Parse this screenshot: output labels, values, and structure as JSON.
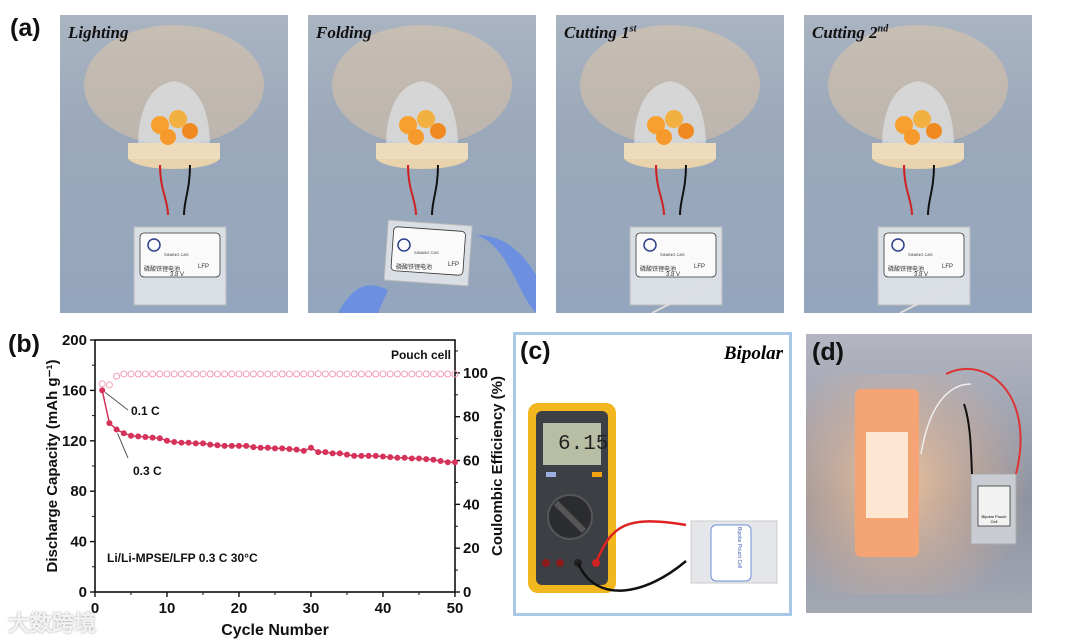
{
  "panels": {
    "a": {
      "label": "(a)",
      "photos": [
        {
          "caption": "Lighting",
          "sup": ""
        },
        {
          "caption": "Folding",
          "sup": ""
        },
        {
          "caption": "Cutting 1",
          "sup": "st"
        },
        {
          "caption": "Cutting 2",
          "sup": "nd"
        }
      ],
      "pouch_voltage": "3.8 V",
      "pouch_chem": "LFP",
      "pouch_name": "磷酸铁锂电池",
      "pouch_org": "SINANO CAS"
    },
    "b": {
      "label": "(b)"
    },
    "c": {
      "label": "(c)",
      "title": "Bipolar",
      "meter_reading": "6.15",
      "pouch_text": "Bipolar Pouch Cell"
    },
    "d": {
      "label": "(d)",
      "pouch_text": "Bipolar Pouch Cell"
    }
  },
  "watermark": "大数跨境",
  "chart_data": {
    "type": "scatter",
    "xlabel": "Cycle Number",
    "ylabel": "Discharge Capacity (mAh g⁻¹)",
    "y2label": "Coulombic Efficiency (%)",
    "xlim": [
      0,
      50
    ],
    "ylim": [
      0,
      200
    ],
    "y2lim": [
      0,
      115
    ],
    "xticks": [
      0,
      10,
      20,
      30,
      40,
      50
    ],
    "yticks": [
      0,
      40,
      80,
      120,
      160,
      200
    ],
    "y2ticks": [
      0,
      20,
      40,
      60,
      80,
      100
    ],
    "legend": "Pouch cell",
    "annotation_condition": "Li/Li-MPSE/LFP  0.3 C  30°C",
    "annotations": [
      "0.1 C",
      "0.3 C"
    ],
    "colors": {
      "capacity": "#d6335a",
      "efficiency": "#f0a0b4"
    },
    "series": [
      {
        "axis": "left",
        "x": [
          1,
          2,
          3,
          4,
          5,
          6,
          7,
          8,
          9,
          10,
          11,
          12,
          13,
          14,
          15,
          16,
          17,
          18,
          19,
          20,
          21,
          22,
          23,
          24,
          25,
          26,
          27,
          28,
          29,
          30,
          31,
          32,
          33,
          34,
          35,
          36,
          37,
          38,
          39,
          40,
          41,
          42,
          43,
          44,
          45,
          46,
          47,
          48,
          49,
          50
        ],
        "values": [
          160,
          134,
          129,
          126,
          124,
          123.5,
          123,
          122.5,
          122,
          120,
          119,
          118.5,
          118.5,
          118,
          118,
          117,
          116.5,
          116,
          116,
          116,
          116,
          115,
          114.5,
          114.5,
          114,
          114,
          113.5,
          113,
          112,
          114.5,
          111,
          111,
          110,
          110,
          109,
          108,
          108,
          108,
          108,
          107.5,
          107,
          106.5,
          106.5,
          106,
          106,
          105.5,
          105,
          104,
          103,
          103
        ]
      },
      {
        "axis": "right",
        "x": [
          1,
          2,
          3,
          4,
          5,
          6,
          7,
          8,
          9,
          10,
          11,
          12,
          13,
          14,
          15,
          16,
          17,
          18,
          19,
          20,
          21,
          22,
          23,
          24,
          25,
          26,
          27,
          28,
          29,
          30,
          31,
          32,
          33,
          34,
          35,
          36,
          37,
          38,
          39,
          40,
          41,
          42,
          43,
          44,
          45,
          46,
          47,
          48,
          49,
          50
        ],
        "values": [
          95,
          94.5,
          98.5,
          99.5,
          99.5,
          99.5,
          99.5,
          99.5,
          99.5,
          99.5,
          99.5,
          99.5,
          99.5,
          99.5,
          99.5,
          99.5,
          99.5,
          99.5,
          99.5,
          99.5,
          99.5,
          99.5,
          99.5,
          99.5,
          99.5,
          99.5,
          99.5,
          99.5,
          99.5,
          99.5,
          99.6,
          99.5,
          99.5,
          99.5,
          99.5,
          99.5,
          99.5,
          99.5,
          99.5,
          99.5,
          99.5,
          99.5,
          99.5,
          99.5,
          99.5,
          99.5,
          99.5,
          99.5,
          99.5,
          99.5
        ]
      }
    ]
  }
}
